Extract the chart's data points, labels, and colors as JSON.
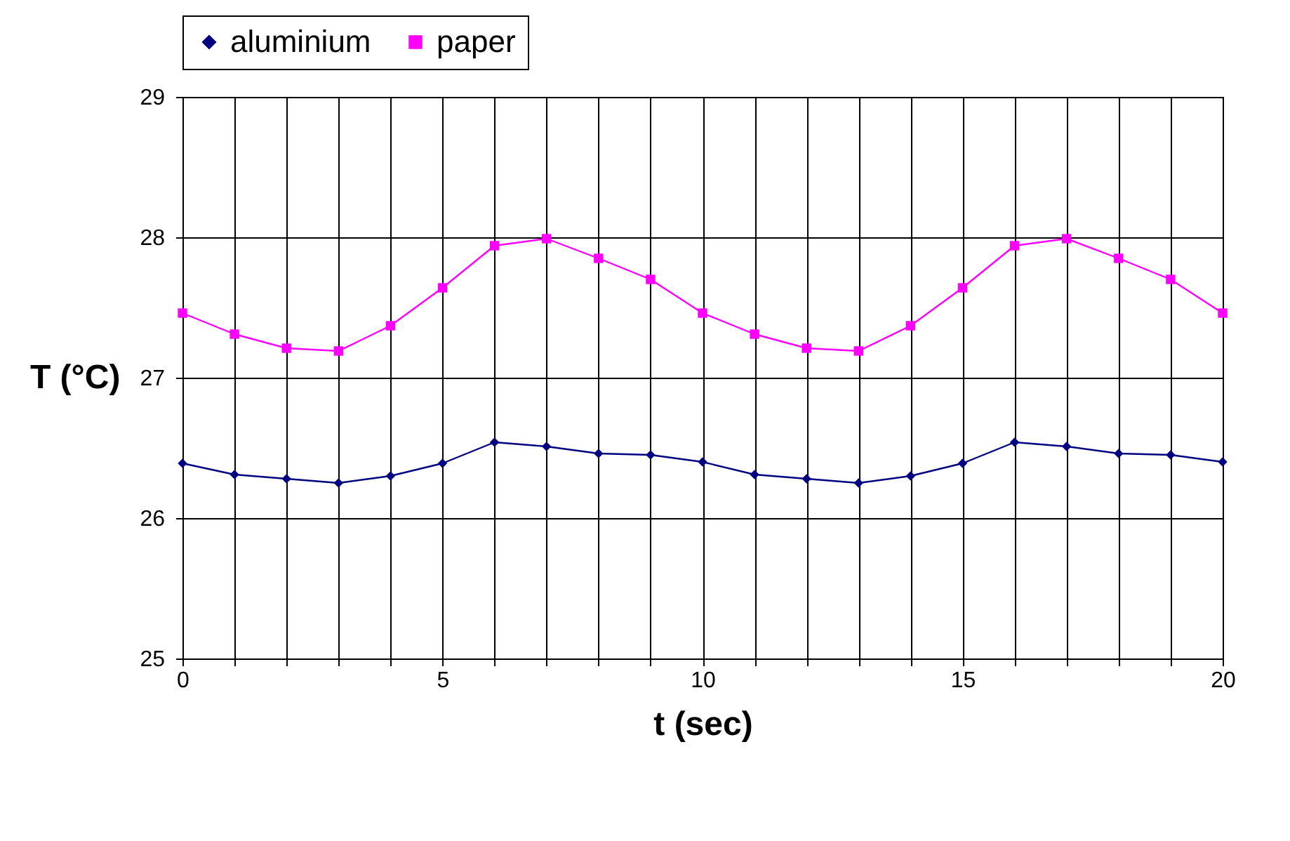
{
  "chart_data": {
    "type": "line",
    "xlabel": "t (sec)",
    "ylabel": "T (°C)",
    "x": [
      0,
      1,
      2,
      3,
      4,
      5,
      6,
      7,
      8,
      9,
      10,
      11,
      12,
      13,
      14,
      15,
      16,
      17,
      18,
      19,
      20
    ],
    "series": [
      {
        "name": "aluminium",
        "color": "#000080",
        "marker": "diamond",
        "values": [
          26.39,
          26.31,
          26.28,
          26.25,
          26.3,
          26.39,
          26.54,
          26.51,
          26.46,
          26.45,
          26.4,
          26.31,
          26.28,
          26.25,
          26.3,
          26.39,
          26.54,
          26.51,
          26.46,
          26.45,
          26.4
        ]
      },
      {
        "name": "paper",
        "color": "#ff00ff",
        "marker": "square",
        "values": [
          27.46,
          27.31,
          27.21,
          27.19,
          27.37,
          27.64,
          27.94,
          27.99,
          27.85,
          27.7,
          27.46,
          27.31,
          27.21,
          27.19,
          27.37,
          27.64,
          27.94,
          27.99,
          27.85,
          27.7,
          27.46
        ]
      }
    ],
    "xlim": [
      0,
      20
    ],
    "xticks": [
      0,
      {
        "value": 1,
        "label": null
      },
      {
        "value": 2,
        "label": null
      },
      {
        "value": 3,
        "label": null
      },
      {
        "value": 4,
        "label": null
      },
      5,
      {
        "value": 6,
        "label": null
      },
      {
        "value": 7,
        "label": null
      },
      {
        "value": 8,
        "label": null
      },
      {
        "value": 9,
        "label": null
      },
      10,
      {
        "value": 11,
        "label": null
      },
      {
        "value": 12,
        "label": null
      },
      {
        "value": 13,
        "label": null
      },
      {
        "value": 14,
        "label": null
      },
      15,
      {
        "value": 16,
        "label": null
      },
      {
        "value": 17,
        "label": null
      },
      {
        "value": 18,
        "label": null
      },
      {
        "value": 19,
        "label": null
      },
      20
    ],
    "ylim": [
      25,
      29
    ],
    "yticks": [
      25,
      26,
      27,
      28,
      29
    ],
    "grid": true,
    "legend": "top",
    "line_style": "solid"
  }
}
